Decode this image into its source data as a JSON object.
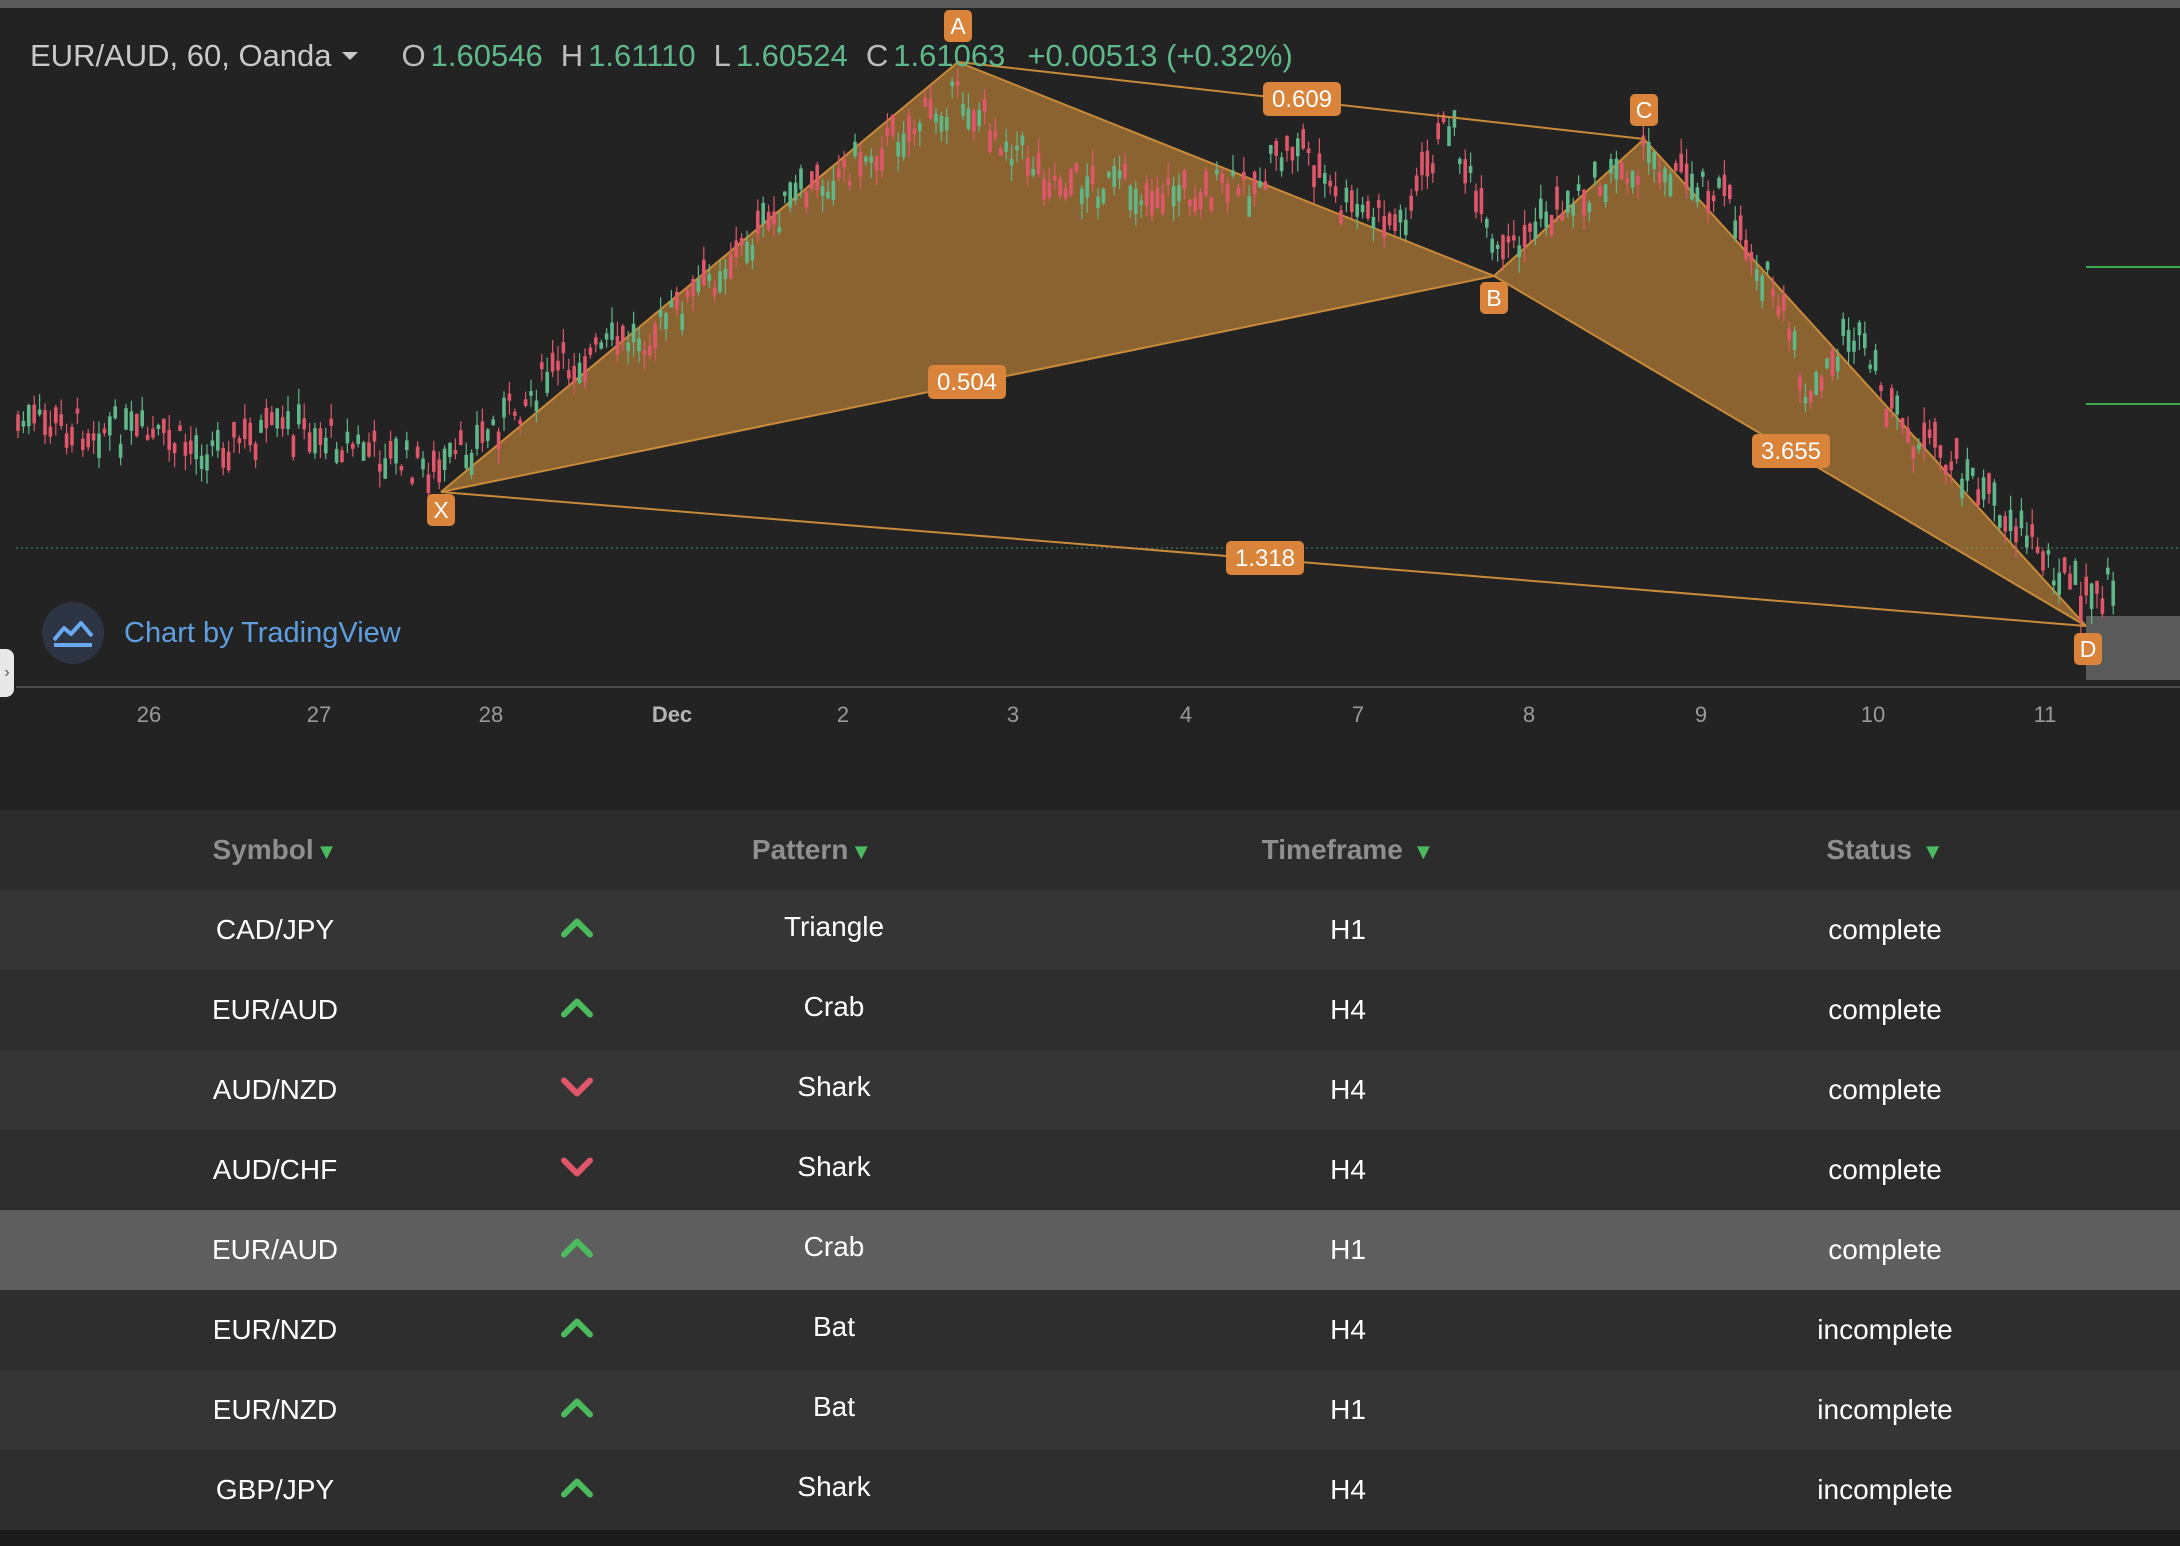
{
  "legend": {
    "symbol": "EUR/AUD, 60, Oanda",
    "open_label": "O",
    "open": "1.60546",
    "high_label": "H",
    "high": "1.61110",
    "low_label": "L",
    "low": "1.60524",
    "close_label": "C",
    "close": "1.61063",
    "change": "+0.00513 (+0.32%)"
  },
  "watermark": {
    "text": "Chart by TradingView"
  },
  "time_axis": [
    "26",
    "27",
    "28",
    "Dec",
    "2",
    "3",
    "4",
    "7",
    "8",
    "9",
    "10",
    "11"
  ],
  "pattern_points": [
    "X",
    "A",
    "B",
    "C",
    "D"
  ],
  "ratio_labels": {
    "xb": "0.504",
    "ac": "0.609",
    "bd": "3.655",
    "xd": "1.318"
  },
  "colors": {
    "up": "#5fb88a",
    "down": "#e0566b",
    "pattern": "#c98a3a",
    "label": "#d9843a"
  },
  "table": {
    "headers": {
      "symbol": "Symbol",
      "pattern": "Pattern",
      "timeframe": "Timeframe",
      "status": "Status"
    },
    "sort_icon": "triangle-down-icon",
    "rows": [
      {
        "symbol": "CAD/JPY",
        "direction": "up",
        "pattern": "Triangle",
        "timeframe": "H1",
        "status": "complete"
      },
      {
        "symbol": "EUR/AUD",
        "direction": "up",
        "pattern": "Crab",
        "timeframe": "H4",
        "status": "complete"
      },
      {
        "symbol": "AUD/NZD",
        "direction": "down",
        "pattern": "Shark",
        "timeframe": "H4",
        "status": "complete"
      },
      {
        "symbol": "AUD/CHF",
        "direction": "down",
        "pattern": "Shark",
        "timeframe": "H4",
        "status": "complete"
      },
      {
        "symbol": "EUR/AUD",
        "direction": "up",
        "pattern": "Crab",
        "timeframe": "H1",
        "status": "complete",
        "selected": true
      },
      {
        "symbol": "EUR/NZD",
        "direction": "up",
        "pattern": "Bat",
        "timeframe": "H4",
        "status": "incomplete"
      },
      {
        "symbol": "EUR/NZD",
        "direction": "up",
        "pattern": "Bat",
        "timeframe": "H1",
        "status": "incomplete"
      },
      {
        "symbol": "GBP/JPY",
        "direction": "up",
        "pattern": "Shark",
        "timeframe": "H4",
        "status": "incomplete"
      }
    ]
  }
}
